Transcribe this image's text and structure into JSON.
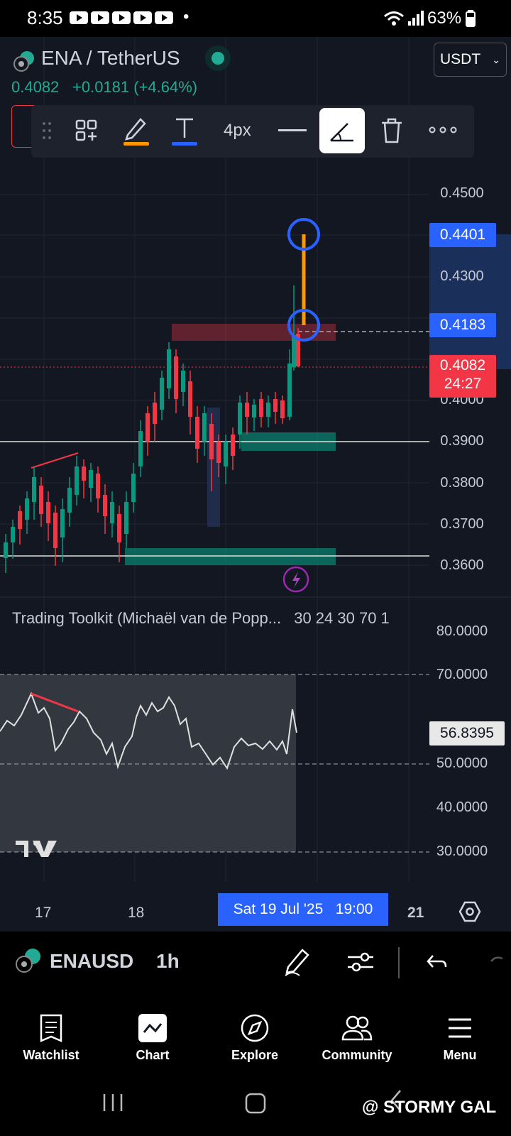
{
  "status_bar": {
    "time": "8:35",
    "battery": "63%",
    "dot": "•"
  },
  "header": {
    "symbol": "ENA / TetherUS",
    "last": "0.4082",
    "change": "+0.0181 (+4.64%)",
    "currency": "USDT"
  },
  "toolbar": {
    "width_label": "4px"
  },
  "price_axis": {
    "labels": [
      "0.4500",
      "0.4300",
      "0.4000",
      "0.3900",
      "0.3800",
      "0.3700",
      "0.3600"
    ],
    "tags": {
      "target": "0.4401",
      "entry": "0.4183",
      "current": "0.4082",
      "countdown": "24:27"
    }
  },
  "oscillator": {
    "title": "Trading Toolkit (Michaël van de Popp...",
    "params": "30 24 30 70 1",
    "labels": [
      "80.0000",
      "70.0000",
      "50.0000",
      "40.0000",
      "30.0000"
    ],
    "current": "56.8395"
  },
  "date_axis": {
    "d17": "17",
    "d18": "18",
    "cursor": "Sat 19 Jul '25   19:00",
    "d21": "21"
  },
  "bottom_toolbar": {
    "symbol": "ENAUSD",
    "interval": "1h"
  },
  "bottom_nav": {
    "items": [
      {
        "label": "Watchlist"
      },
      {
        "label": "Chart"
      },
      {
        "label": "Explore"
      },
      {
        "label": "Community"
      },
      {
        "label": "Menu"
      }
    ]
  },
  "watermark": "@ STORMY GAL",
  "colors": {
    "bg": "#131722",
    "up": "#22ab94",
    "down": "#f23645",
    "accent": "#2962ff",
    "orange": "#ff9800"
  }
}
